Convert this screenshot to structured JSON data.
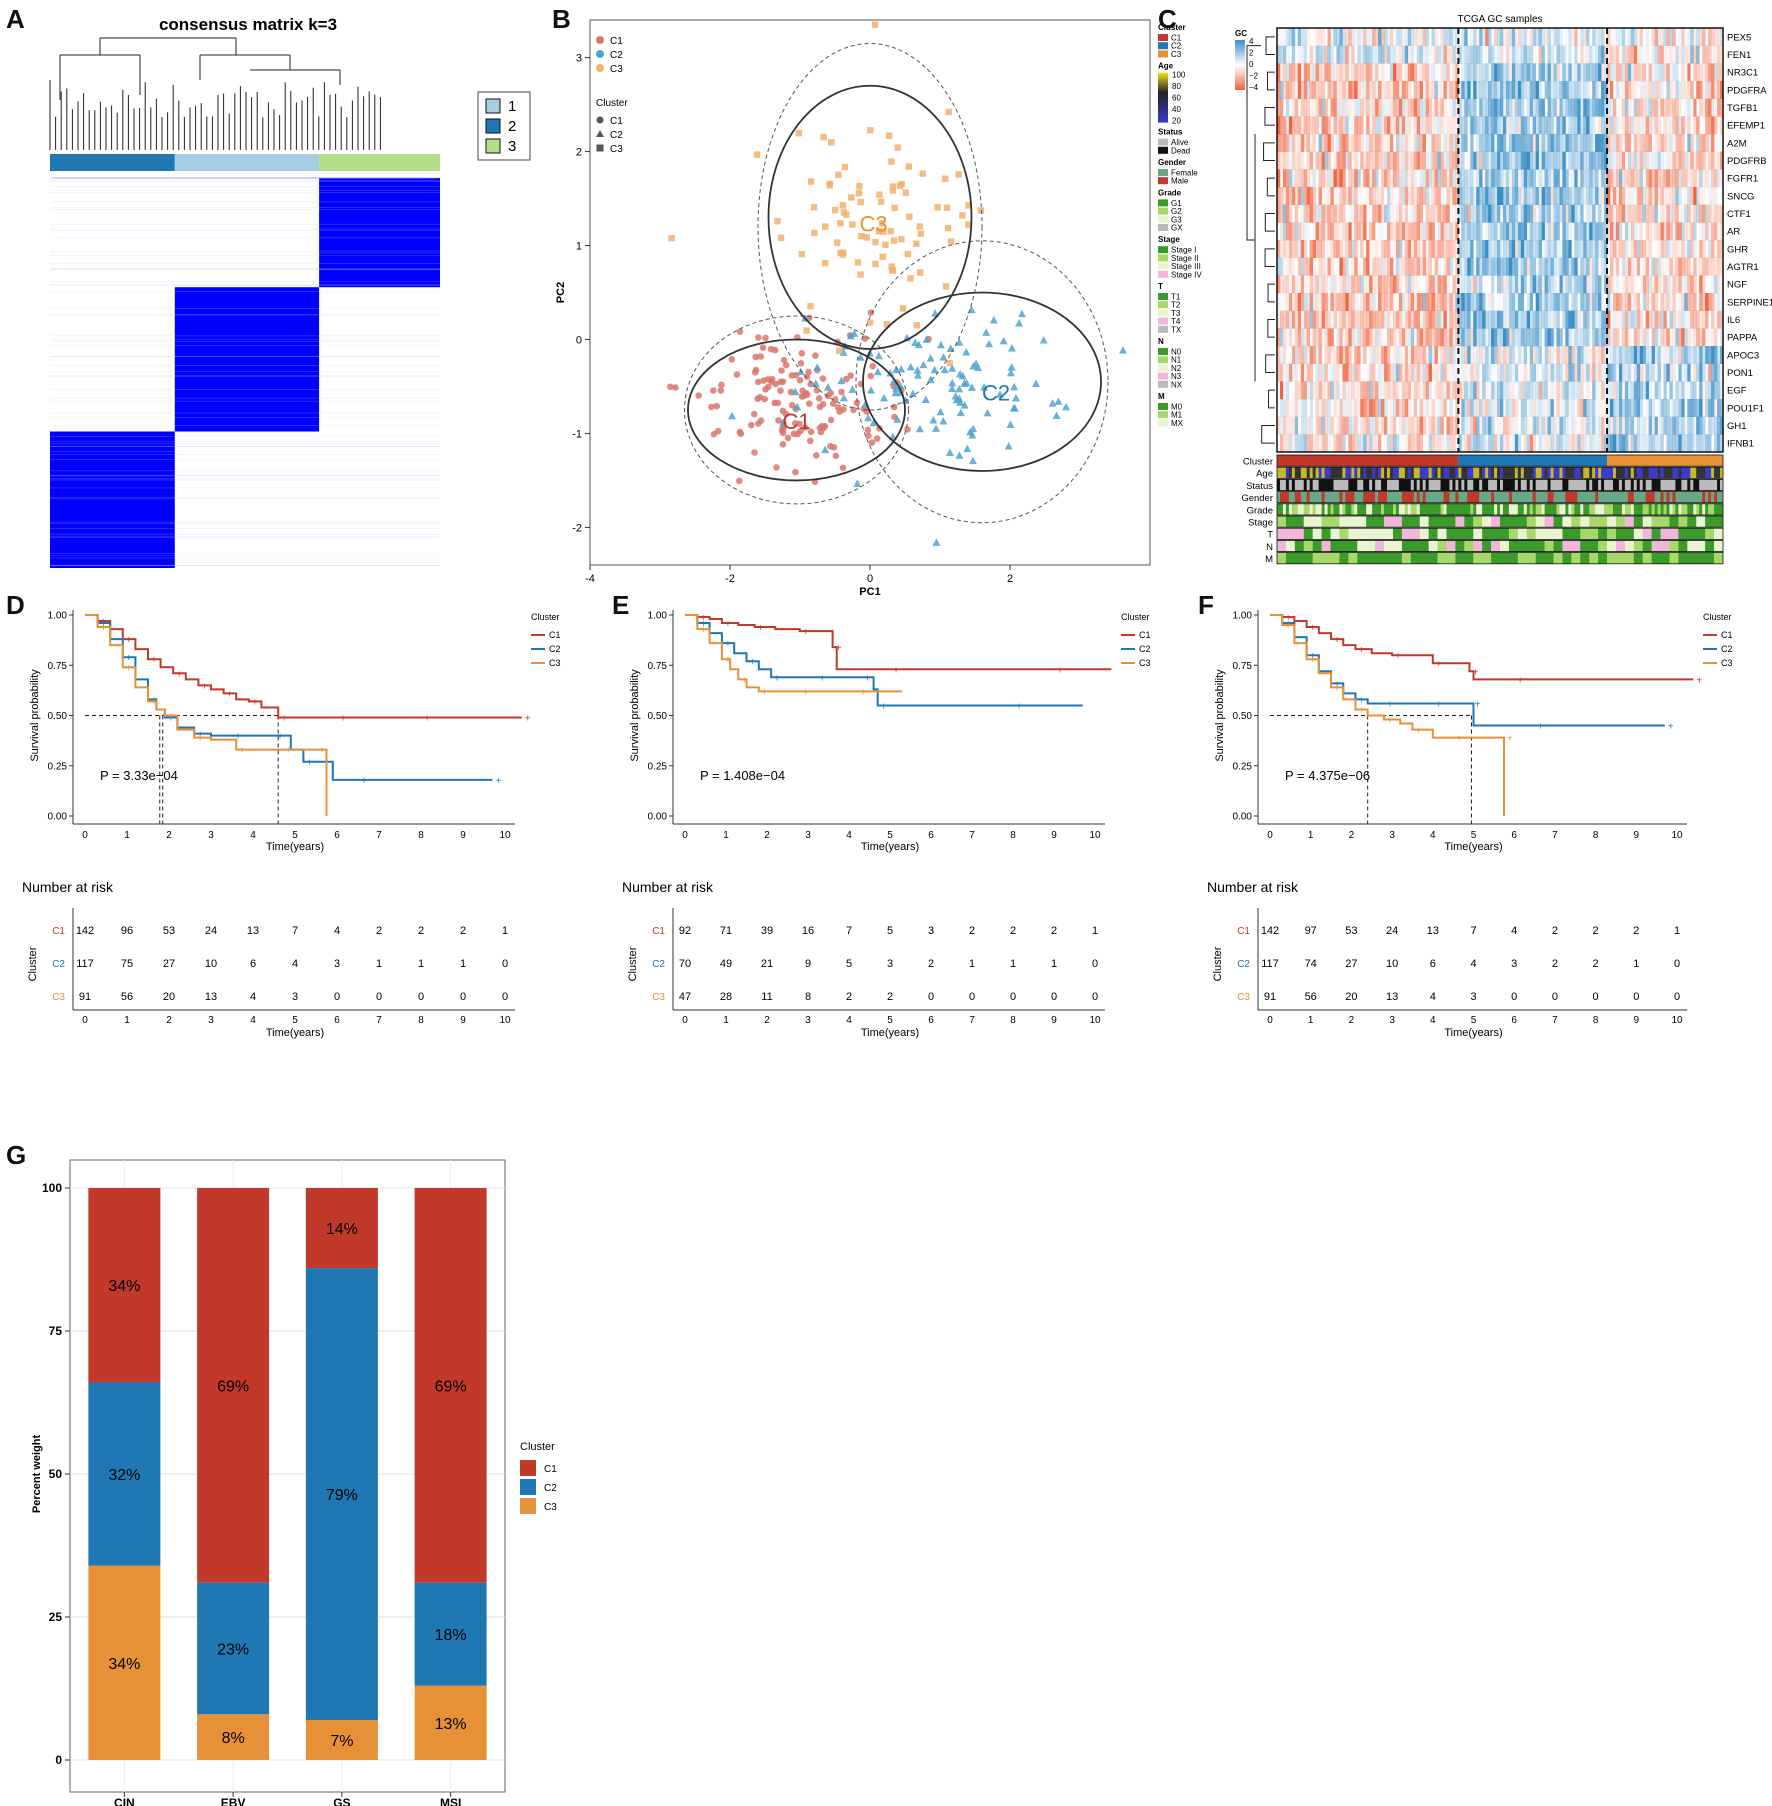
{
  "panel_labels": [
    "A",
    "B",
    "C",
    "D",
    "E",
    "F",
    "G"
  ],
  "colors": {
    "C1": "#C0392B",
    "C2": "#1F77B4",
    "C3": "#E69138",
    "c1_light": "#D9776C",
    "c2_light": "#4FA3D1",
    "c3_light": "#F2B06B",
    "consensus": "#0000FF"
  },
  "chart_data": [
    {
      "id": "A",
      "type": "heatmap",
      "title": "consensus matrix k=3",
      "legend": [
        "1",
        "2",
        "3"
      ],
      "legend_colors": [
        "#A6CEE3",
        "#1F78B4",
        "#B2DF8A"
      ],
      "cluster_bar": [
        {
          "label": "2",
          "size": 0.32
        },
        {
          "label": "1",
          "size": 0.37
        },
        {
          "label": "3",
          "size": 0.31
        }
      ]
    },
    {
      "id": "B",
      "type": "scatter",
      "xlabel": "PC1",
      "ylabel": "PC2",
      "xlim": [
        -4,
        4
      ],
      "ylim": [
        -2.4,
        3.4
      ],
      "xticks": [
        -4,
        -2,
        0,
        2
      ],
      "yticks": [
        -2,
        -1,
        0,
        1,
        2,
        3
      ],
      "legend_title_shape": "Cluster",
      "series": [
        {
          "name": "C1",
          "shape": "circle",
          "center": [
            -1.0,
            -0.65
          ],
          "spread": [
            0.75,
            0.38
          ],
          "n": 140,
          "ellipse": [
            -1.05,
            -0.75,
            1.55,
            0.75
          ],
          "ellipse2": [
            -1.05,
            -0.75,
            1.6,
            1.0
          ]
        },
        {
          "name": "C2",
          "shape": "triangle",
          "center": [
            1.0,
            -0.45
          ],
          "spread": [
            0.85,
            0.4
          ],
          "n": 115,
          "ellipse": [
            1.6,
            -0.45,
            1.7,
            0.95
          ],
          "ellipse2": [
            1.6,
            -0.45,
            1.8,
            1.5
          ]
        },
        {
          "name": "C3",
          "shape": "square",
          "center": [
            0.0,
            1.3
          ],
          "spread": [
            0.7,
            0.65
          ],
          "n": 90,
          "ellipse": [
            0.0,
            1.3,
            1.45,
            1.4
          ],
          "ellipse2": [
            0.0,
            1.2,
            1.6,
            1.95
          ]
        }
      ]
    },
    {
      "id": "C",
      "type": "heatmap",
      "title": "TCGA GC samples",
      "genes": [
        "PEX5",
        "FEN1",
        "NR3C1",
        "PDGFRA",
        "TGFB1",
        "EFEMP1",
        "A2M",
        "PDGFRB",
        "FGFR1",
        "SNCG",
        "CTF1",
        "AR",
        "GHR",
        "AGTR1",
        "NGF",
        "SERPINE1",
        "IL6",
        "PAPPA",
        "APOC3",
        "PON1",
        "EGF",
        "POU1F1",
        "GH1",
        "IFNB1"
      ],
      "scale_title": "GC",
      "scale_ticks": [
        "4",
        "2",
        "0",
        "−2",
        "−4"
      ],
      "annotation_rows": [
        "Cluster",
        "Age",
        "Status",
        "Gender",
        "Grade",
        "Stage",
        "T",
        "N",
        "M"
      ],
      "cluster_fraction": [
        0.41,
        0.33,
        0.26
      ],
      "legend": [
        {
          "title": "Cluster",
          "items": [
            {
              "label": "C1",
              "color": "#C0392B"
            },
            {
              "label": "C2",
              "color": "#1F77B4"
            },
            {
              "label": "C3",
              "color": "#E69138"
            }
          ]
        },
        {
          "title": "Age",
          "gradient": true,
          "ticks": [
            "100",
            "80",
            "60",
            "40",
            "20"
          ]
        },
        {
          "title": "Status",
          "items": [
            {
              "label": "Alive",
              "color": "#BBBBBB"
            },
            {
              "label": "Dead",
              "color": "#111111"
            }
          ]
        },
        {
          "title": "Gender",
          "items": [
            {
              "label": "Female",
              "color": "#66A887"
            },
            {
              "label": "Male",
              "color": "#C0392B"
            }
          ]
        },
        {
          "title": "Grade",
          "items": [
            {
              "label": "G1",
              "color": "#3A9A2A"
            },
            {
              "label": "G2",
              "color": "#A6D96A"
            },
            {
              "label": "G3",
              "color": "#E8F5D0"
            },
            {
              "label": "GX",
              "color": "#BBBBBB"
            }
          ]
        },
        {
          "title": "Stage",
          "items": [
            {
              "label": "Stage I",
              "color": "#3A9A2A"
            },
            {
              "label": "Stage II",
              "color": "#A6D96A"
            },
            {
              "label": "Stage III",
              "color": "#E8F5D0"
            },
            {
              "label": "Stage IV",
              "color": "#F1B6DA"
            }
          ]
        },
        {
          "title": "T",
          "items": [
            {
              "label": "T1",
              "color": "#3A9A2A"
            },
            {
              "label": "T2",
              "color": "#A6D96A"
            },
            {
              "label": "T3",
              "color": "#E8F5D0"
            },
            {
              "label": "T4",
              "color": "#F1B6DA"
            },
            {
              "label": "TX",
              "color": "#BBBBBB"
            }
          ]
        },
        {
          "title": "N",
          "items": [
            {
              "label": "N0",
              "color": "#3A9A2A"
            },
            {
              "label": "N1",
              "color": "#A6D96A"
            },
            {
              "label": "N2",
              "color": "#E8F5D0"
            },
            {
              "label": "N3",
              "color": "#F1B6DA"
            },
            {
              "label": "NX",
              "color": "#BBBBBB"
            }
          ]
        },
        {
          "title": "M",
          "items": [
            {
              "label": "M0",
              "color": "#3A9A2A"
            },
            {
              "label": "M1",
              "color": "#A6D96A"
            },
            {
              "label": "MX",
              "color": "#E8F5D0"
            }
          ]
        }
      ]
    },
    {
      "id": "D",
      "type": "line",
      "ylabel": "Survival probability",
      "xlabel": "Time(years)",
      "xlim": [
        0,
        10
      ],
      "ylim": [
        0,
        1
      ],
      "xticks": [
        0,
        1,
        2,
        3,
        4,
        5,
        6,
        7,
        8,
        9,
        10
      ],
      "yticks": [
        "0.00",
        "0.25",
        "0.50",
        "0.75",
        "1.00"
      ],
      "pvalue": "P = 3.33e−04",
      "legend_title": "Cluster",
      "medians": [
        1.78,
        1.85,
        4.6
      ],
      "series": [
        {
          "name": "C1",
          "x": [
            0,
            0.3,
            0.6,
            0.9,
            1.2,
            1.5,
            1.8,
            2.1,
            2.4,
            2.7,
            3.0,
            3.3,
            3.6,
            3.9,
            4.2,
            4.6,
            5.0,
            6.0,
            7.0,
            8.0,
            9.0,
            10.4
          ],
          "y": [
            1,
            0.97,
            0.93,
            0.88,
            0.83,
            0.78,
            0.74,
            0.71,
            0.68,
            0.65,
            0.63,
            0.61,
            0.58,
            0.57,
            0.54,
            0.49,
            0.49,
            0.49,
            0.49,
            0.49,
            0.49,
            0.49
          ]
        },
        {
          "name": "C2",
          "x": [
            0,
            0.3,
            0.6,
            0.9,
            1.2,
            1.5,
            1.7,
            1.9,
            2.2,
            2.6,
            3.0,
            3.5,
            4.0,
            4.5,
            4.9,
            5.2,
            5.9,
            6.5,
            8.0,
            9.7
          ],
          "y": [
            1,
            0.96,
            0.88,
            0.79,
            0.68,
            0.58,
            0.53,
            0.49,
            0.44,
            0.41,
            0.4,
            0.4,
            0.4,
            0.4,
            0.33,
            0.27,
            0.18,
            0.18,
            0.18,
            0.18
          ]
        },
        {
          "name": "C3",
          "x": [
            0,
            0.3,
            0.6,
            0.9,
            1.2,
            1.5,
            1.7,
            1.9,
            2.2,
            2.6,
            3.0,
            3.6,
            4.2,
            4.7,
            5.1,
            5.5,
            5.75,
            5.75
          ],
          "y": [
            1,
            0.94,
            0.85,
            0.74,
            0.64,
            0.57,
            0.53,
            0.5,
            0.43,
            0.39,
            0.38,
            0.33,
            0.33,
            0.33,
            0.33,
            0.33,
            0.33,
            0.0
          ]
        }
      ],
      "risk": {
        "title": "Number at risk",
        "ylabel": "Cluster",
        "xlabel": "Time(years)",
        "rows": [
          {
            "name": "C1",
            "values": [
              142,
              96,
              53,
              24,
              13,
              7,
              4,
              2,
              2,
              2,
              1
            ]
          },
          {
            "name": "C2",
            "values": [
              117,
              75,
              27,
              10,
              6,
              4,
              3,
              1,
              1,
              1,
              0
            ]
          },
          {
            "name": "C3",
            "values": [
              91,
              56,
              20,
              13,
              4,
              3,
              0,
              0,
              0,
              0,
              0
            ]
          }
        ]
      }
    },
    {
      "id": "E",
      "type": "line",
      "ylabel": "Survival probability",
      "xlabel": "Time(years)",
      "xlim": [
        0,
        10
      ],
      "ylim": [
        0,
        1
      ],
      "xticks": [
        0,
        1,
        2,
        3,
        4,
        5,
        6,
        7,
        8,
        9,
        10
      ],
      "yticks": [
        "0.00",
        "0.25",
        "0.50",
        "0.75",
        "1.00"
      ],
      "pvalue": "P = 1.408e−04",
      "legend_title": "Cluster",
      "medians": [],
      "series": [
        {
          "name": "C1",
          "x": [
            0,
            0.3,
            0.6,
            0.9,
            1.3,
            1.7,
            2.2,
            2.8,
            3.4,
            3.6,
            3.7,
            5.0,
            7.0,
            9.0,
            10.4
          ],
          "y": [
            1,
            0.99,
            0.98,
            0.96,
            0.95,
            0.94,
            0.93,
            0.92,
            0.92,
            0.84,
            0.73,
            0.73,
            0.73,
            0.73,
            0.73
          ]
        },
        {
          "name": "C2",
          "x": [
            0,
            0.3,
            0.6,
            0.9,
            1.2,
            1.5,
            1.8,
            2.1,
            2.6,
            3.2,
            3.8,
            4.3,
            4.6,
            4.7,
            6.5,
            8.0,
            9.7
          ],
          "y": [
            1,
            0.96,
            0.91,
            0.86,
            0.81,
            0.77,
            0.73,
            0.69,
            0.69,
            0.69,
            0.69,
            0.69,
            0.63,
            0.55,
            0.55,
            0.55,
            0.55
          ]
        },
        {
          "name": "C3",
          "x": [
            0,
            0.3,
            0.6,
            0.9,
            1.1,
            1.3,
            1.5,
            1.8,
            2.2,
            2.8,
            3.5,
            4.2,
            5.3
          ],
          "y": [
            1,
            0.93,
            0.86,
            0.78,
            0.73,
            0.68,
            0.64,
            0.62,
            0.62,
            0.62,
            0.62,
            0.62,
            0.62
          ]
        }
      ],
      "risk": {
        "title": "Number at risk",
        "ylabel": "Cluster",
        "xlabel": "Time(years)",
        "rows": [
          {
            "name": "C1",
            "values": [
              92,
              71,
              39,
              16,
              7,
              5,
              3,
              2,
              2,
              2,
              1
            ]
          },
          {
            "name": "C2",
            "values": [
              70,
              49,
              21,
              9,
              5,
              3,
              2,
              1,
              1,
              1,
              0
            ]
          },
          {
            "name": "C3",
            "values": [
              47,
              28,
              11,
              8,
              2,
              2,
              0,
              0,
              0,
              0,
              0
            ]
          }
        ]
      }
    },
    {
      "id": "F",
      "type": "line",
      "ylabel": "Survival probability",
      "xlabel": "Time(years)",
      "xlim": [
        0,
        10
      ],
      "ylim": [
        0,
        1
      ],
      "xticks": [
        0,
        1,
        2,
        3,
        4,
        5,
        6,
        7,
        8,
        9,
        10
      ],
      "yticks": [
        "0.00",
        "0.25",
        "0.50",
        "0.75",
        "1.00"
      ],
      "pvalue": "P = 4.375e−06",
      "legend_title": "Cluster",
      "medians": [
        2.4,
        4.95
      ],
      "series": [
        {
          "name": "C1",
          "x": [
            0,
            0.3,
            0.6,
            0.9,
            1.2,
            1.5,
            1.8,
            2.1,
            2.5,
            3.0,
            3.5,
            4.0,
            4.5,
            4.9,
            5.0,
            6.0,
            8.0,
            10.4
          ],
          "y": [
            1,
            0.99,
            0.97,
            0.94,
            0.91,
            0.88,
            0.85,
            0.83,
            0.81,
            0.8,
            0.8,
            0.76,
            0.76,
            0.72,
            0.68,
            0.68,
            0.68,
            0.68
          ]
        },
        {
          "name": "C2",
          "x": [
            0,
            0.3,
            0.6,
            0.9,
            1.2,
            1.5,
            1.8,
            2.1,
            2.4,
            2.8,
            3.3,
            4.0,
            4.5,
            4.95,
            5.0,
            6.5,
            8.0,
            9.7
          ],
          "y": [
            1,
            0.96,
            0.89,
            0.8,
            0.72,
            0.66,
            0.61,
            0.58,
            0.56,
            0.56,
            0.56,
            0.56,
            0.56,
            0.56,
            0.45,
            0.45,
            0.45,
            0.45
          ]
        },
        {
          "name": "C3",
          "x": [
            0,
            0.3,
            0.6,
            0.9,
            1.2,
            1.5,
            1.8,
            2.1,
            2.4,
            2.8,
            3.2,
            3.5,
            4.0,
            4.5,
            5.2,
            5.75,
            5.75
          ],
          "y": [
            1,
            0.95,
            0.86,
            0.78,
            0.71,
            0.64,
            0.58,
            0.53,
            0.5,
            0.48,
            0.46,
            0.43,
            0.39,
            0.39,
            0.39,
            0.39,
            0.0
          ]
        }
      ],
      "risk": {
        "title": "Number at risk",
        "ylabel": "Cluster",
        "xlabel": "Time(years)",
        "rows": [
          {
            "name": "C1",
            "values": [
              142,
              97,
              53,
              24,
              13,
              7,
              4,
              2,
              2,
              2,
              1
            ]
          },
          {
            "name": "C2",
            "values": [
              117,
              74,
              27,
              10,
              6,
              4,
              3,
              2,
              2,
              1,
              0
            ]
          },
          {
            "name": "C3",
            "values": [
              91,
              56,
              20,
              13,
              4,
              3,
              0,
              0,
              0,
              0,
              0
            ]
          }
        ]
      }
    },
    {
      "id": "G",
      "type": "bar",
      "stacked": true,
      "ylabel": "Percent weight",
      "categories": [
        "CIN",
        "EBV",
        "GS",
        "MSI"
      ],
      "ylim": [
        0,
        100
      ],
      "yticks": [
        0,
        25,
        50,
        75,
        100
      ],
      "legend_title": "Cluster",
      "series": [
        {
          "name": "C1",
          "values": [
            34,
            69,
            14,
            69
          ],
          "labels": [
            "34%",
            "69%",
            "14%",
            "69%"
          ]
        },
        {
          "name": "C2",
          "values": [
            32,
            23,
            79,
            18
          ],
          "labels": [
            "32%",
            "23%",
            "79%",
            "18%"
          ]
        },
        {
          "name": "C3",
          "values": [
            34,
            8,
            7,
            13
          ],
          "labels": [
            "34%",
            "8%",
            "7%",
            "13%"
          ]
        }
      ]
    }
  ]
}
